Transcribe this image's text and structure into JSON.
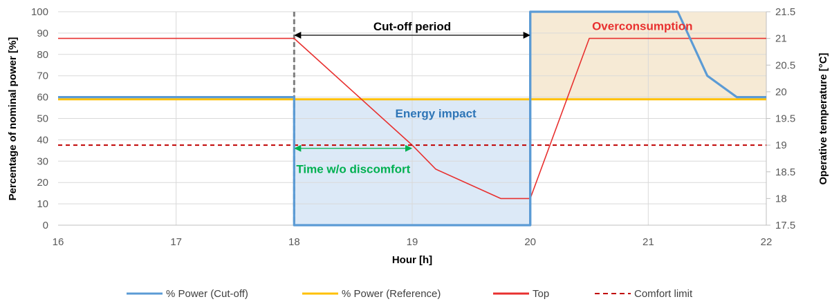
{
  "chart_data": {
    "type": "line",
    "xlabel": "Hour [h]",
    "ylabel_left": "Percentage of nominal power [%]",
    "ylabel_right": "Operative temperature [°C]",
    "xlim": [
      16,
      22
    ],
    "ylim_left": [
      0,
      100
    ],
    "ylim_right": [
      17.5,
      21.5
    ],
    "x_ticks": [
      "16",
      "17",
      "18",
      "19",
      "20",
      "21",
      "22"
    ],
    "y_left_ticks": [
      "0",
      "10",
      "20",
      "30",
      "40",
      "50",
      "60",
      "70",
      "80",
      "90",
      "100"
    ],
    "y_right_ticks": [
      "17.5",
      "18",
      "18.5",
      "19",
      "19.5",
      "20",
      "20.5",
      "21",
      "21.5"
    ],
    "grid": true,
    "legend_position": "bottom",
    "series": [
      {
        "name": "% Power (Cut-off)",
        "axis": "left",
        "color": "#5b9bd5",
        "style": "solid",
        "points": [
          [
            16,
            60
          ],
          [
            18,
            60
          ],
          [
            18,
            0
          ],
          [
            20,
            0
          ],
          [
            20,
            100
          ],
          [
            21.25,
            100
          ],
          [
            21.5,
            70
          ],
          [
            21.75,
            60
          ],
          [
            22,
            60
          ]
        ]
      },
      {
        "name": "% Power (Reference)",
        "axis": "left",
        "color": "#ffc000",
        "style": "solid",
        "points": [
          [
            16,
            59
          ],
          [
            22,
            59
          ]
        ]
      },
      {
        "name": "Top",
        "axis": "right",
        "color": "#e8302f",
        "style": "solid",
        "points": [
          [
            16,
            21
          ],
          [
            18,
            21
          ],
          [
            19,
            19
          ],
          [
            19.2,
            18.55
          ],
          [
            19.75,
            18
          ],
          [
            20,
            18
          ],
          [
            20.5,
            21
          ],
          [
            22,
            21
          ]
        ]
      },
      {
        "name": "Comfort limit",
        "axis": "right",
        "color": "#c00000",
        "style": "dashed",
        "points": [
          [
            16,
            19
          ],
          [
            22,
            19
          ]
        ]
      }
    ],
    "shaded_regions": [
      {
        "x0": 18,
        "x1": 20,
        "y0": 0,
        "y1": 59,
        "color": "#dce9f7"
      },
      {
        "x0": 20,
        "x1": 22,
        "y0": 59,
        "y1": 100,
        "color": "#f6ead5"
      }
    ],
    "vertical_lines": [
      {
        "x": 18,
        "color": "#7f7f7f",
        "style": "dashed"
      },
      {
        "x": 20,
        "color": "#2e75b6",
        "style": "solid"
      }
    ],
    "annotations": {
      "cutoff_period": {
        "text": "Cut-off period",
        "x_from": 18,
        "x_to": 20,
        "y": 89,
        "color": "#000000"
      },
      "overconsumption": {
        "text": "Overconsumption",
        "x": 20.95,
        "y": 91.5,
        "color": "#e8302f"
      },
      "energy_impact": {
        "text": "Energy impact",
        "x": 19.2,
        "y": 50.5,
        "color": "#2e75b6"
      },
      "time_without_discomfort": {
        "text": "Time w/o discomfort",
        "x_from": 18,
        "x_to": 19,
        "y": 36,
        "label_y": 24.5,
        "color": "#00b050"
      }
    }
  }
}
